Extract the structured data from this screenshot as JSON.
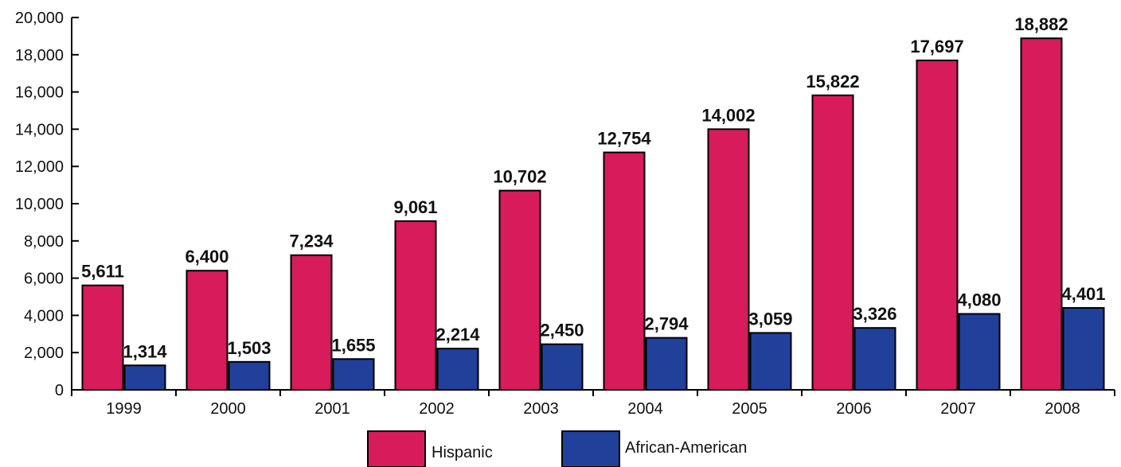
{
  "chart_data": {
    "type": "bar",
    "title": "",
    "xlabel": "",
    "ylabel": "",
    "ylim": [
      0,
      20000
    ],
    "yticks": [
      0,
      2000,
      4000,
      6000,
      8000,
      10000,
      12000,
      14000,
      16000,
      18000,
      20000
    ],
    "ytick_labels": [
      "0",
      "2,000",
      "4,000",
      "6,000",
      "8,000",
      "10,000",
      "12,000",
      "14,000",
      "16,000",
      "18,000",
      "20,000"
    ],
    "categories": [
      "1999",
      "2000",
      "2001",
      "2002",
      "2003",
      "2004",
      "2005",
      "2006",
      "2007",
      "2008"
    ],
    "series": [
      {
        "name": "Hispanic",
        "color": "#d81b5a",
        "values": [
          5611,
          6400,
          7234,
          9061,
          10702,
          12754,
          14002,
          15822,
          17697,
          18882
        ],
        "labels": [
          "5,611",
          "6,400",
          "7,234",
          "9,061",
          "10,702",
          "12,754",
          "14,002",
          "15,822",
          "17,697",
          "18,882"
        ]
      },
      {
        "name": "African-American",
        "color": "#21409a",
        "values": [
          1314,
          1503,
          1655,
          2214,
          2450,
          2794,
          3059,
          3326,
          4080,
          4401
        ],
        "labels": [
          "1,314",
          "1,503",
          "1,655",
          "2,214",
          "2,450",
          "2,794",
          "3,059",
          "3,326",
          "4,080",
          "4,401"
        ]
      }
    ],
    "grid": false,
    "legend": "bottom"
  }
}
